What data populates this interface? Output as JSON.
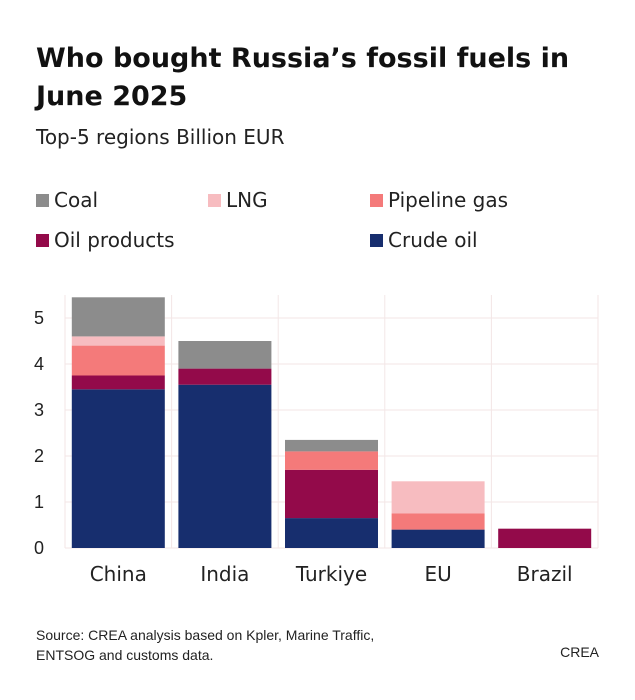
{
  "title": "Who bought Russia’s fossil fuels in June 2025",
  "subtitle": "Top-5 regions Billion EUR",
  "source": "Source: CREA analysis based on Kpler, Marine Traffic, ENTSOG and customs data.",
  "brand": "CREA",
  "legend": [
    {
      "label": "Coal",
      "color": "#8c8c8c"
    },
    {
      "label": "LNG",
      "color": "#f7bcc0"
    },
    {
      "label": "Pipeline gas",
      "color": "#f47a7a"
    },
    {
      "label": "Oil products",
      "color": "#930a4a"
    },
    {
      "label": "Crude oil",
      "color": "#172e6e"
    }
  ],
  "chart_data": {
    "type": "bar",
    "stacked": true,
    "categories": [
      "China",
      "India",
      "Turkiye",
      "EU",
      "Brazil"
    ],
    "series": [
      {
        "name": "Crude oil",
        "color": "#172e6e",
        "values": [
          3.45,
          3.55,
          0.65,
          0.4,
          0
        ]
      },
      {
        "name": "Oil products",
        "color": "#930a4a",
        "values": [
          0.3,
          0.35,
          1.05,
          0,
          0.42
        ]
      },
      {
        "name": "Pipeline gas",
        "color": "#f47a7a",
        "values": [
          0.65,
          0,
          0.4,
          0.35,
          0
        ]
      },
      {
        "name": "LNG",
        "color": "#f7bcc0",
        "values": [
          0.2,
          0,
          0,
          0.7,
          0
        ]
      },
      {
        "name": "Coal",
        "color": "#8c8c8c",
        "values": [
          0.85,
          0.6,
          0.25,
          0,
          0
        ]
      }
    ],
    "yticks": [
      0,
      1,
      2,
      3,
      4,
      5
    ],
    "ylim": [
      0,
      5.5
    ],
    "grid": true
  }
}
